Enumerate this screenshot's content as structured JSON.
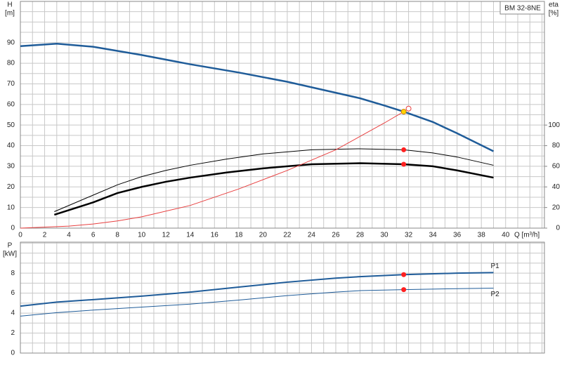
{
  "chart_data": [
    {
      "type": "line",
      "title": "BM 32-8NE",
      "ylabel": "H",
      "yunit": "[m]",
      "y2label": "eta",
      "y2unit": "[%]",
      "xlabel": "Q [m³/h]",
      "xlim": [
        0,
        43.2
      ],
      "xticks": [
        0,
        2,
        4,
        6,
        8,
        10,
        12,
        14,
        16,
        18,
        20,
        22,
        24,
        26,
        28,
        30,
        32,
        34,
        36,
        38,
        40
      ],
      "ylim": [
        0,
        110
      ],
      "yticks": [
        0,
        10,
        20,
        30,
        40,
        50,
        60,
        70,
        80,
        90
      ],
      "y2lim": [
        0,
        220
      ],
      "y2ticks": [
        0,
        20,
        40,
        60,
        80,
        100
      ],
      "grid": true,
      "series": [
        {
          "color": "#1f5c99",
          "width": 2.5,
          "x": [
            0,
            3,
            6,
            8,
            10,
            14,
            18,
            22,
            25,
            28,
            30,
            31.6,
            34,
            36,
            39
          ],
          "values": [
            88.3,
            89.5,
            88,
            86,
            84,
            79.5,
            75.5,
            71,
            67,
            63,
            59.5,
            56.5,
            51.5,
            46,
            37.3
          ]
        },
        {
          "color": "#000000",
          "width": 1,
          "axis": "y2",
          "x": [
            2.8,
            6,
            8,
            10,
            12,
            14,
            17,
            20,
            24,
            28,
            31.6,
            34,
            36,
            39
          ],
          "values": [
            16,
            32,
            42,
            50,
            56,
            61,
            67,
            72,
            76,
            77,
            76,
            73,
            69,
            61
          ]
        },
        {
          "color": "#000000",
          "width": 2.5,
          "axis": "y2",
          "x": [
            2.8,
            6,
            8,
            10,
            12,
            14,
            17,
            20,
            24,
            28,
            31.6,
            34,
            36,
            39
          ],
          "values": [
            13,
            25,
            34,
            40,
            45,
            49,
            54,
            58,
            62,
            63,
            62,
            60,
            56,
            49
          ]
        },
        {
          "color": "#e84040",
          "width": 1,
          "x": [
            0,
            4,
            6,
            8,
            10,
            14,
            18,
            22,
            26,
            28,
            30,
            31.6
          ],
          "values": [
            0,
            1,
            2,
            3.5,
            5.5,
            11,
            19,
            28,
            38,
            44.5,
            51,
            56.5
          ]
        }
      ],
      "points": [
        {
          "x": 31.6,
          "value": 56.5,
          "color": "#ffd400"
        },
        {
          "x": 32,
          "value": 58,
          "color": "#e84040",
          "hollow": true
        },
        {
          "x": 31.6,
          "value": 76,
          "color": "#ff2020",
          "axis": "y2"
        },
        {
          "x": 31.6,
          "value": 62,
          "color": "#ff2020",
          "axis": "y2"
        }
      ]
    },
    {
      "type": "line",
      "ylabel": "P",
      "yunit": "[kW]",
      "xlim": [
        0,
        43.2
      ],
      "ylim": [
        0,
        11.1
      ],
      "yticks": [
        0,
        2,
        4,
        6,
        8
      ],
      "grid": true,
      "series": [
        {
          "name": "P1",
          "color": "#1f5c99",
          "width": 2,
          "x": [
            0,
            3,
            6,
            10,
            14,
            18,
            22,
            26,
            28,
            31.6,
            36,
            39
          ],
          "values": [
            4.7,
            5.1,
            5.35,
            5.7,
            6.1,
            6.6,
            7.1,
            7.5,
            7.65,
            7.85,
            8.0,
            8.05
          ]
        },
        {
          "name": "P2",
          "color": "#1f5c99",
          "width": 1,
          "x": [
            0,
            3,
            6,
            10,
            14,
            18,
            22,
            26,
            28,
            31.6,
            36,
            39
          ],
          "values": [
            3.7,
            4.05,
            4.3,
            4.6,
            4.9,
            5.3,
            5.75,
            6.1,
            6.25,
            6.35,
            6.45,
            6.5
          ]
        }
      ],
      "points": [
        {
          "x": 31.6,
          "value": 7.85,
          "color": "#ff2020"
        },
        {
          "x": 31.6,
          "value": 6.35,
          "color": "#ff2020"
        }
      ]
    }
  ]
}
